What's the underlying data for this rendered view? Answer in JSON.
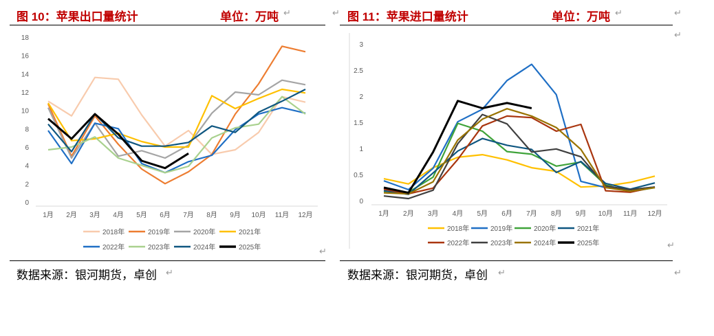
{
  "figures": [
    {
      "title": "图 10：苹果出口量统计",
      "unit": "单位：万吨",
      "source": "数据来源：银河期货，卓创",
      "chart_data": {
        "type": "line",
        "title": "",
        "xlabel": "",
        "ylabel": "",
        "categories": [
          "1月",
          "2月",
          "3月",
          "4月",
          "5月",
          "6月",
          "7月",
          "8月",
          "9月",
          "10月",
          "11月",
          "12月"
        ],
        "ylim": [
          0,
          18
        ],
        "yticks": [
          0,
          2,
          4,
          6,
          8,
          10,
          12,
          14,
          16,
          18
        ],
        "grid": false,
        "legend_position": "bottom",
        "series": [
          {
            "name": "2018年",
            "color": "#f8cbad",
            "values": [
              11.0,
              9.4,
              13.6,
              13.4,
              9.5,
              6.1,
              7.8,
              5.2,
              5.7,
              7.6,
              11.5,
              10.9
            ]
          },
          {
            "name": "2019年",
            "color": "#ed7d31",
            "values": [
              10.7,
              5.0,
              9.4,
              6.3,
              3.6,
              2.0,
              3.3,
              5.2,
              9.6,
              12.9,
              17.0,
              16.4
            ]
          },
          {
            "name": "2020年",
            "color": "#a5a5a5",
            "values": [
              10.3,
              4.8,
              8.6,
              5.0,
              5.6,
              4.8,
              6.2,
              9.7,
              12.0,
              11.7,
              13.3,
              12.8
            ]
          },
          {
            "name": "2021年",
            "color": "#ffc000",
            "values": [
              10.8,
              6.7,
              6.9,
              7.5,
              6.6,
              6.0,
              6.0,
              11.6,
              10.2,
              11.3,
              12.3,
              11.9
            ]
          },
          {
            "name": "2022年",
            "color": "#1f6fc5",
            "values": [
              7.8,
              4.2,
              8.6,
              8.0,
              4.2,
              3.2,
              4.4,
              5.1,
              7.9,
              9.6,
              10.3,
              9.7
            ]
          },
          {
            "name": "2023年",
            "color": "#a9d18e",
            "values": [
              5.7,
              6.0,
              7.1,
              4.8,
              4.0,
              3.2,
              3.9,
              7.0,
              8.1,
              8.5,
              11.5,
              9.6
            ]
          },
          {
            "name": "2024年",
            "color": "#0e5680",
            "values": [
              8.5,
              5.5,
              9.6,
              7.0,
              6.1,
              6.1,
              6.5,
              8.3,
              7.6,
              9.8,
              11.0,
              12.3
            ]
          },
          {
            "name": "2025年",
            "color": "#000000",
            "values": [
              9.1,
              6.9,
              9.6,
              7.4,
              4.5,
              3.7,
              5.3,
              null,
              null,
              null,
              null,
              null
            ]
          }
        ]
      }
    },
    {
      "title": "图 11：苹果进口量统计",
      "unit": "单位：万吨",
      "source": "数据来源：银河期货，卓创",
      "chart_data": {
        "type": "line",
        "title": "",
        "xlabel": "",
        "ylabel": "",
        "categories": [
          "1月",
          "2月",
          "3月",
          "4月",
          "5月",
          "6月",
          "7月",
          "8月",
          "9月",
          "10月",
          "11月",
          "12月"
        ],
        "ylim": [
          0,
          3
        ],
        "yticks": [
          0,
          0.5,
          1,
          1.5,
          2,
          2.5,
          3
        ],
        "grid": false,
        "legend_position": "bottom",
        "series": [
          {
            "name": "2018年",
            "color": "#ffc000",
            "values": [
              0.42,
              0.32,
              0.63,
              0.83,
              0.88,
              0.78,
              0.63,
              0.56,
              0.26,
              0.28,
              0.35,
              0.47
            ]
          },
          {
            "name": "2019年",
            "color": "#1f6fc5",
            "values": [
              0.38,
              0.21,
              0.62,
              1.51,
              1.75,
              2.3,
              2.61,
              2.03,
              0.37,
              0.25,
              0.21,
              0.26
            ]
          },
          {
            "name": "2020年",
            "color": "#3fa33a",
            "values": [
              0.18,
              0.16,
              0.45,
              1.48,
              1.33,
              0.94,
              0.89,
              0.66,
              0.74,
              0.3,
              0.17,
              0.25
            ]
          },
          {
            "name": "2021年",
            "color": "#0e5680",
            "values": [
              0.19,
              0.12,
              0.53,
              0.95,
              1.19,
              1.06,
              0.98,
              0.54,
              0.75,
              0.33,
              0.22,
              0.34
            ]
          },
          {
            "name": "2022年",
            "color": "#a9350f",
            "values": [
              0.22,
              0.13,
              0.24,
              0.79,
              1.43,
              1.62,
              1.59,
              1.33,
              1.46,
              0.19,
              0.16,
              0.26
            ]
          },
          {
            "name": "2023年",
            "color": "#404040",
            "values": [
              0.09,
              0.04,
              0.2,
              1.09,
              1.65,
              1.47,
              0.93,
              0.99,
              0.84,
              0.28,
              0.21,
              0.26
            ]
          },
          {
            "name": "2024年",
            "color": "#997300",
            "values": [
              0.15,
              0.13,
              0.36,
              1.16,
              1.56,
              1.76,
              1.62,
              1.4,
              0.98,
              0.25,
              0.18,
              0.25
            ]
          },
          {
            "name": "2025年",
            "color": "#000000",
            "values": [
              0.25,
              0.15,
              0.93,
              1.91,
              1.77,
              1.87,
              1.77,
              null,
              null,
              null,
              null,
              null
            ]
          }
        ]
      }
    }
  ],
  "return_mark": "↵"
}
